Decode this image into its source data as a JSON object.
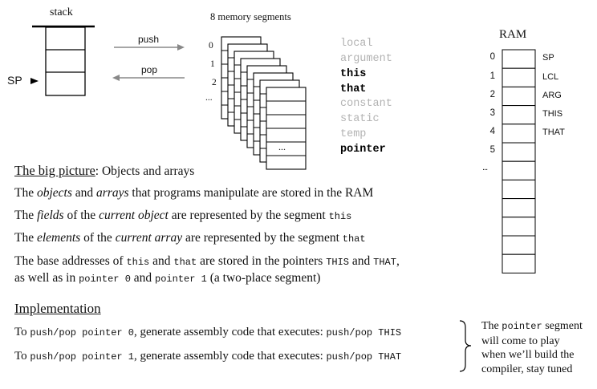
{
  "stack": {
    "title": "stack",
    "sp_label": "SP"
  },
  "arrows": {
    "push": "push",
    "pop": "pop"
  },
  "segments": {
    "title": "8 memory segments",
    "indices": [
      "0",
      "1",
      "2",
      "..."
    ],
    "dots": "...",
    "names": [
      {
        "name": "local",
        "active": false
      },
      {
        "name": "argument",
        "active": false
      },
      {
        "name": "this",
        "active": true
      },
      {
        "name": "that",
        "active": true
      },
      {
        "name": "constant",
        "active": false
      },
      {
        "name": "static",
        "active": false
      },
      {
        "name": "temp",
        "active": false
      },
      {
        "name": "pointer",
        "active": true
      }
    ]
  },
  "ram": {
    "title": "RAM",
    "indices": [
      "0",
      "1",
      "2",
      "3",
      "4",
      "5"
    ],
    "labels": [
      "SP",
      "LCL",
      "ARG",
      "THIS",
      "THAT"
    ],
    "dots": "..."
  },
  "big_picture": {
    "heading": "The big picture",
    "heading_suffix": ": Objects and arrays",
    "l1": {
      "a": "The ",
      "b": "objects",
      "c": " and ",
      "d": "arrays",
      "e": " that programs manipulate are stored in the RAM"
    },
    "l2": {
      "a": "The ",
      "b": "fields",
      "c": " of the ",
      "d": "current object",
      "e": " are represented by the segment ",
      "f": "this"
    },
    "l3": {
      "a": "The ",
      "b": "elements",
      "c": " of the ",
      "d": "current array",
      "e": " are represented by the segment ",
      "f": "that"
    },
    "l4": {
      "a": "The base addresses of ",
      "b": "this",
      "c": " and ",
      "d": "that",
      "e": " are stored in the pointers ",
      "f": "THIS",
      "g": " and ",
      "h": "THAT",
      "i": ","
    },
    "l5": {
      "a": "as well as in ",
      "b": "pointer 0",
      "c": " and ",
      "d": "pointer 1",
      "e": " (a two-place segment)"
    }
  },
  "implementation": {
    "heading": "Implementation",
    "r1": {
      "a": "To ",
      "b": "push/pop pointer 0",
      "c": ", generate assembly code that executes: ",
      "d": "push/pop THIS"
    },
    "r2": {
      "a": "To ",
      "b": "push/pop pointer 1",
      "c": ", generate assembly code that executes: ",
      "d": "push/pop THAT"
    },
    "note": {
      "a": "The ",
      "b": "pointer",
      "c": " segment",
      "l2": "will come to play",
      "l3": "when we’ll build the",
      "l4": "compiler, stay tuned"
    }
  }
}
